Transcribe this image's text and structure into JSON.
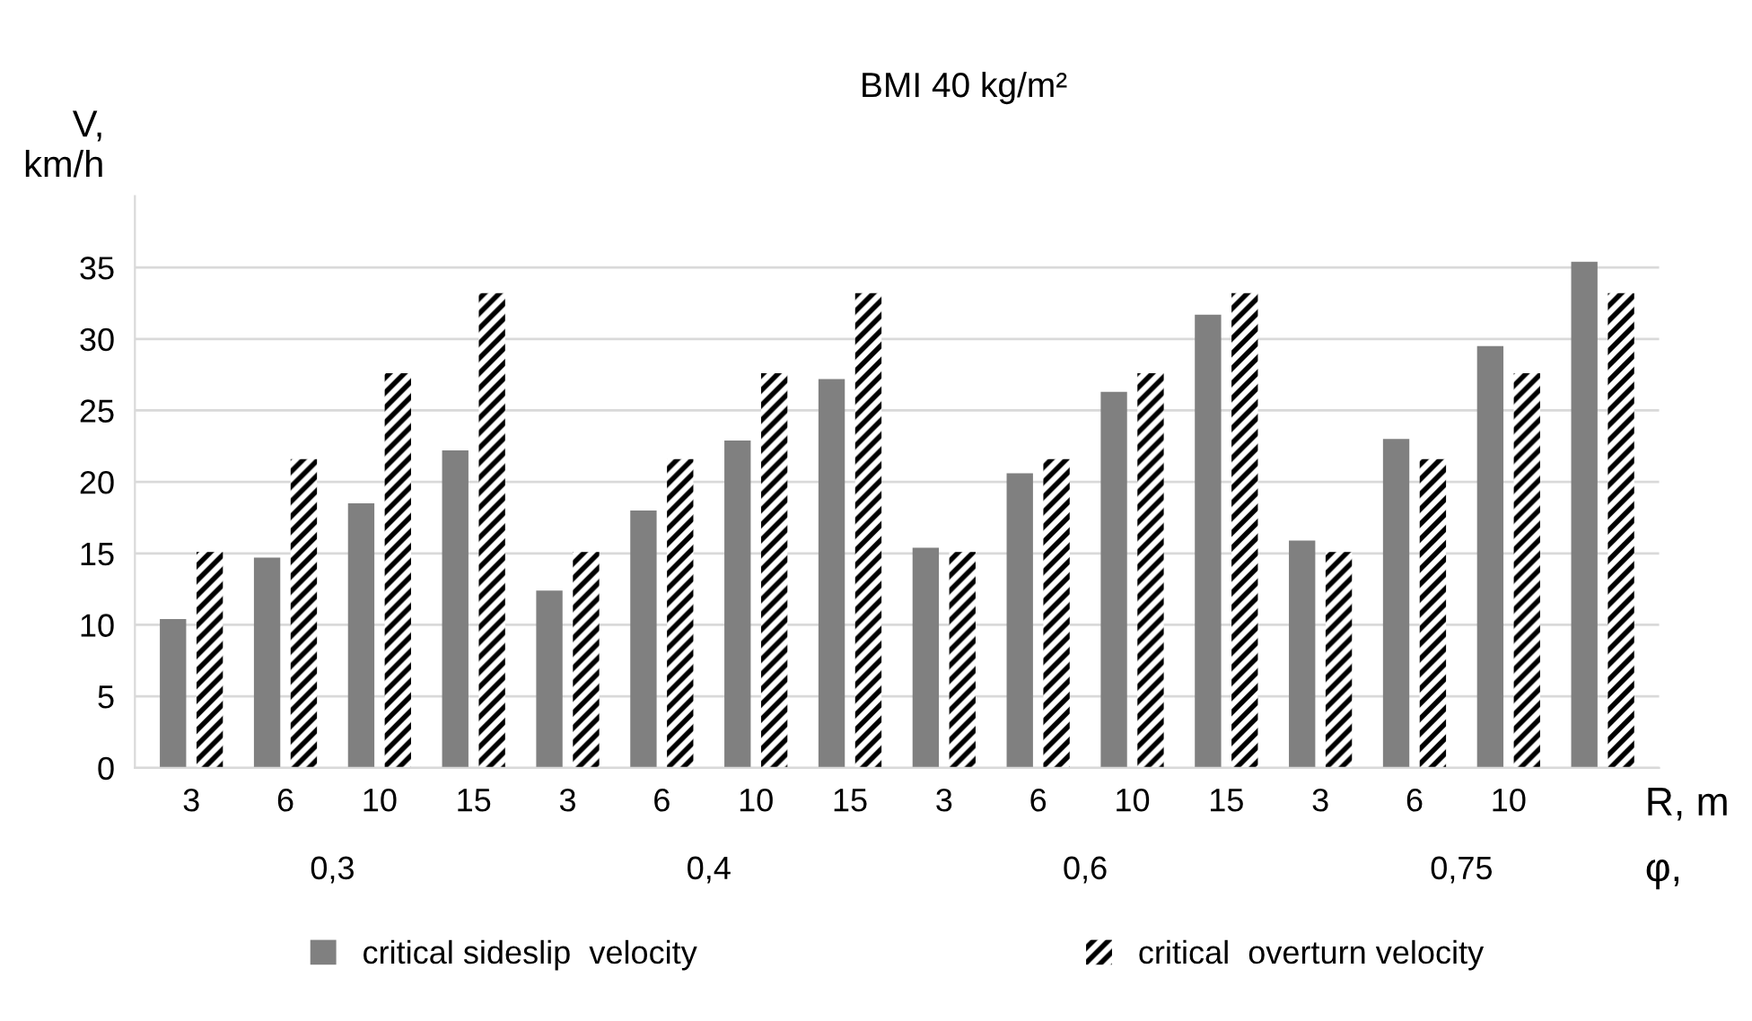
{
  "chart_data": {
    "type": "bar",
    "title": "BMI 40 kg/m²",
    "ylabel": "V,\nkm/h",
    "xlabel": "R, m",
    "categories": [
      "3",
      "6",
      "10",
      "15",
      "3",
      "6",
      "10",
      "15",
      "3",
      "6",
      "10",
      "15",
      "3",
      "6",
      "10",
      null
    ],
    "series": [
      {
        "name": "critical sideslip  velocity",
        "color": "#808080",
        "values": [
          10.4,
          14.7,
          18.5,
          22.2,
          12.4,
          18.0,
          22.9,
          27.2,
          15.4,
          20.6,
          26.3,
          31.7,
          15.9,
          23.0,
          29.5,
          35.4
        ]
      },
      {
        "name": "critical  overturn velocity",
        "color": "#000000",
        "values": [
          15.1,
          21.6,
          27.6,
          33.2,
          15.1,
          21.6,
          27.6,
          33.2,
          15.1,
          21.6,
          27.6,
          33.2,
          15.1,
          21.6,
          27.6,
          33.2
        ]
      }
    ],
    "annotations": [
      "0,3",
      "0,4",
      "0,6",
      "0,75",
      "φ,"
    ],
    "ylim": [
      0,
      40
    ],
    "yticks": [
      0,
      5,
      10,
      15,
      20,
      25,
      30,
      35
    ],
    "grid": "y",
    "legend": "bottom"
  }
}
